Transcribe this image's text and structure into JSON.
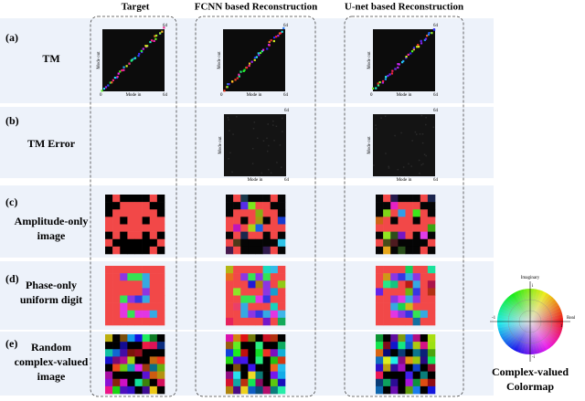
{
  "columns": [
    "Target",
    "FCNN based Reconstruction",
    "U-net based Reconstruction"
  ],
  "rows": [
    {
      "tag": "(a)",
      "label": [
        "TM"
      ]
    },
    {
      "tag": "(b)",
      "label": [
        "TM Error"
      ]
    },
    {
      "tag": "(c)",
      "label": [
        "Amplitude-only",
        "image"
      ]
    },
    {
      "tag": "(d)",
      "label": [
        "Phase-only",
        "uniform digit"
      ]
    },
    {
      "tag": "(e)",
      "label": [
        "Random",
        "complex-valued",
        "image"
      ]
    }
  ],
  "tm_axis": {
    "zero": "0",
    "max": "64",
    "x_label": "Mode in",
    "y_label": "Mode out"
  },
  "colormap": {
    "imag_axis": "Imaginary",
    "real_axis": "Real",
    "pos_i": "i",
    "neg_i": "-i",
    "pos_one": "1",
    "neg_one": "-1",
    "caption": [
      "Complex-valued",
      "Colormap"
    ]
  }
}
